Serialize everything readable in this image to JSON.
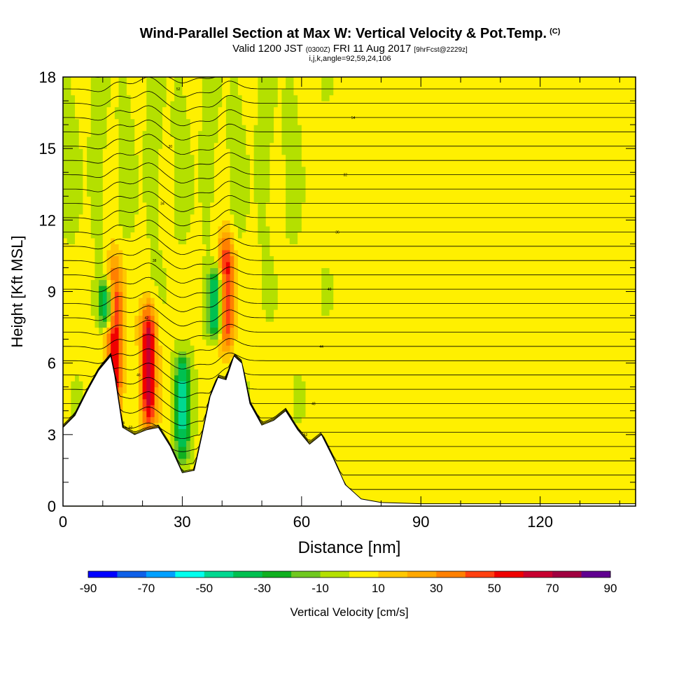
{
  "header": {
    "title": "Wind-Parallel Section at Max W: Vertical Velocity & Pot.Temp.",
    "copyright": "(C)",
    "valid_prefix": "Valid 1200 JST",
    "valid_utc": "(0300Z)",
    "valid_date": "FRI 11 Aug 2017",
    "forecast": "[9hrFcst@2229z]",
    "grid_info": "i,j,k,angle=92,59,24,106"
  },
  "chart_data": {
    "type": "heatmap",
    "xlabel": "Distance [nm]",
    "ylabel": "Height [Kft MSL]",
    "xlim": [
      0,
      144
    ],
    "ylim": [
      0,
      18
    ],
    "x_ticks": [
      0,
      30,
      60,
      90,
      120
    ],
    "y_ticks": [
      0,
      3,
      6,
      9,
      12,
      15,
      18
    ],
    "colorbar": {
      "label": "Vertical Velocity [cm/s]",
      "tick_labels": [
        -90,
        -70,
        -50,
        -30,
        -10,
        10,
        30,
        50,
        70,
        90
      ],
      "bounds": [
        -90,
        -80,
        -70,
        -60,
        -50,
        -40,
        -30,
        -20,
        -10,
        0,
        10,
        20,
        30,
        40,
        50,
        60,
        70,
        80,
        90
      ],
      "colors": [
        "#0000ff",
        "#0f60e8",
        "#00a0ff",
        "#00ffee",
        "#00d890",
        "#00c050",
        "#10b020",
        "#70c820",
        "#b4e000",
        "#fff000",
        "#ffc800",
        "#ffa800",
        "#ff8000",
        "#ff4010",
        "#f00000",
        "#c80030",
        "#a00040",
        "#600090"
      ]
    },
    "terrain": {
      "x": [
        0,
        3,
        6,
        9,
        12,
        13,
        15,
        18,
        21,
        24,
        27,
        30,
        33,
        35,
        37,
        39,
        41,
        43,
        45,
        47,
        50,
        53,
        56,
        59,
        62,
        65,
        68,
        71,
        75,
        80,
        90,
        100,
        110,
        120,
        130,
        144
      ],
      "height": [
        3.3,
        3.8,
        4.8,
        5.7,
        6.3,
        5.5,
        3.3,
        3.0,
        3.2,
        3.3,
        2.5,
        1.4,
        1.5,
        3.0,
        4.6,
        5.4,
        5.3,
        6.3,
        6.0,
        4.3,
        3.4,
        3.6,
        4.0,
        3.2,
        2.6,
        3.0,
        2.0,
        0.9,
        0.3,
        0.15,
        0.1,
        0.1,
        0.1,
        0.1,
        0.1,
        0.1
      ]
    },
    "updraft_cores": [
      {
        "x": 13,
        "y_min": 3.5,
        "y_max": 10.5,
        "w": 55
      },
      {
        "x": 21.5,
        "y_min": 3.2,
        "y_max": 8.5,
        "w": 65
      },
      {
        "x": 41,
        "y_min": 6.5,
        "y_max": 11.5,
        "w": 55
      }
    ],
    "downdraft_cores": [
      {
        "x": 30,
        "y_min": 1.8,
        "y_max": 6.5,
        "w": -45
      },
      {
        "x": 38.5,
        "y_min": 7.0,
        "y_max": 10.0,
        "w": -50
      },
      {
        "x": 11,
        "y_min": 7.5,
        "y_max": 9.5,
        "w": -45
      }
    ],
    "theta_contour_labels": [
      "54",
      "52",
      "50",
      "48",
      "46",
      "44",
      "42",
      "40",
      "38",
      "36",
      "34",
      "32",
      "30"
    ]
  }
}
